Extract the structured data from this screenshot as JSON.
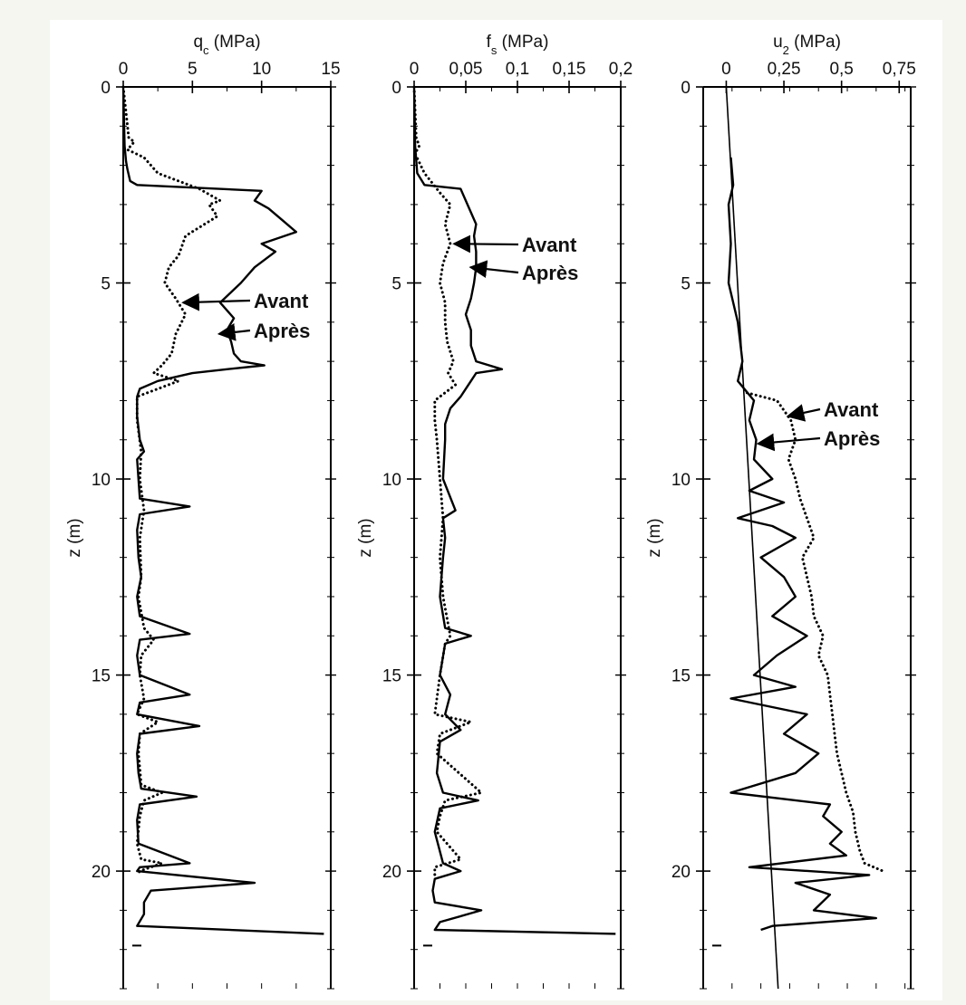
{
  "chart_data": [
    {
      "type": "line",
      "panel": "qc",
      "xlabel_main": "q",
      "xlabel_sub": "c",
      "xlabel_unit": " (MPa)",
      "ylabel": "z (m)",
      "xlim": [
        0,
        15
      ],
      "ylim": [
        0,
        23
      ],
      "x_ticks": [
        "0",
        "5",
        "10",
        "15"
      ],
      "x_tick_values": [
        0,
        5,
        10,
        15
      ],
      "y_ticks": [
        "0",
        "5",
        "10",
        "15",
        "20"
      ],
      "y_tick_values": [
        0,
        5,
        10,
        15,
        20
      ],
      "annotations": [
        {
          "text": "Avant",
          "target_x": 4.2,
          "target_z": 5.5
        },
        {
          "text": "Après",
          "target_x": 6.8,
          "target_z": 6.3
        }
      ],
      "series": [
        {
          "name": "Avant",
          "style": "dotted",
          "z": [
            0,
            1.3,
            1.4,
            1.6,
            1.8,
            2.2,
            2.6,
            2.9,
            3.0,
            3.3,
            3.8,
            4.3,
            4.6,
            5.0,
            5.4,
            5.8,
            6.3,
            6.8,
            7.1,
            7.3,
            7.5,
            7.9,
            8.5,
            9.3,
            10.0,
            10.8,
            11.5,
            12.5,
            13.0,
            13.8,
            14.1,
            14.5,
            15.0,
            15.6,
            16.0,
            16.2,
            16.5,
            17.0,
            17.8,
            18.0,
            18.2,
            18.6,
            19.3,
            19.7,
            19.8,
            20.0,
            20.1
          ],
          "x": [
            0,
            0.4,
            0.8,
            0.3,
            1.5,
            2.5,
            5.5,
            7.0,
            6.2,
            6.8,
            4.5,
            4.0,
            3.3,
            3.0,
            3.8,
            4.5,
            3.8,
            3.5,
            2.8,
            2.2,
            4.0,
            1.0,
            1.0,
            1.3,
            1.2,
            1.5,
            1.2,
            1.3,
            1.1,
            1.5,
            2.2,
            1.3,
            1.2,
            1.5,
            1.0,
            2.5,
            1.2,
            1.1,
            1.3,
            2.8,
            1.5,
            1.2,
            1.0,
            1.3,
            2.8,
            1.2,
            1.0
          ]
        },
        {
          "name": "Après",
          "style": "solid",
          "z": [
            0,
            1.5,
            1.9,
            2.1,
            2.4,
            2.5,
            2.65,
            2.9,
            3.1,
            3.4,
            3.7,
            4.0,
            4.2,
            4.6,
            5.0,
            5.5,
            5.9,
            6.2,
            6.5,
            6.8,
            7.0,
            7.1,
            7.2,
            7.3,
            7.5,
            7.7,
            7.9,
            8.4,
            9.0,
            9.3,
            9.5,
            10.0,
            10.5,
            10.7,
            10.9,
            11.3,
            12.0,
            12.5,
            13.0,
            13.5,
            13.95,
            14.1,
            14.5,
            15.0,
            15.5,
            15.7,
            16.0,
            16.3,
            16.5,
            17.0,
            17.5,
            17.9,
            18.1,
            18.3,
            18.7,
            19.3,
            19.8,
            19.9,
            20.0,
            20.3,
            20.5,
            20.8,
            21.1,
            21.4,
            21.6
          ],
          "x": [
            0,
            0.1,
            0.2,
            0.3,
            0.5,
            1.0,
            10.0,
            9.5,
            10.5,
            11.5,
            12.5,
            10.0,
            11.0,
            9.5,
            8.5,
            7.0,
            8.0,
            7.5,
            7.8,
            8.0,
            8.5,
            10.2,
            7.5,
            5.0,
            2.5,
            1.2,
            1.0,
            1.0,
            1.2,
            1.5,
            1.0,
            1.1,
            1.2,
            4.8,
            1.2,
            1.0,
            1.1,
            1.3,
            1.0,
            1.2,
            4.8,
            1.2,
            1.0,
            1.2,
            4.8,
            1.2,
            1.0,
            5.5,
            1.2,
            1.0,
            1.1,
            1.3,
            5.3,
            1.2,
            1.0,
            1.1,
            4.8,
            1.2,
            1.0,
            9.5,
            2.0,
            1.5,
            1.5,
            1.0,
            14.5
          ]
        }
      ]
    },
    {
      "type": "line",
      "panel": "fs",
      "xlabel_main": "f",
      "xlabel_sub": "s",
      "xlabel_unit": " (MPa)",
      "ylabel": "z (m)",
      "xlim": [
        0,
        0.2
      ],
      "ylim": [
        0,
        23
      ],
      "x_ticks": [
        "0",
        "0,05",
        "0,1",
        "0,15",
        "0,2"
      ],
      "x_tick_values": [
        0,
        0.05,
        0.1,
        0.15,
        0.2
      ],
      "y_ticks": [
        "0",
        "5",
        "10",
        "15",
        "20"
      ],
      "y_tick_values": [
        0,
        5,
        10,
        15,
        20
      ],
      "annotations": [
        {
          "text": "Avant",
          "target_x": 0.037,
          "target_z": 4.0
        },
        {
          "text": "Après",
          "target_x": 0.053,
          "target_z": 4.6
        }
      ],
      "series": [
        {
          "name": "Avant",
          "style": "dotted",
          "z": [
            0,
            1.3,
            1.5,
            1.7,
            2.2,
            2.7,
            3.0,
            3.5,
            4.0,
            4.5,
            5.0,
            5.5,
            6.0,
            6.5,
            7.0,
            7.3,
            7.6,
            8.0,
            8.5,
            9.0,
            10.0,
            11.0,
            12.0,
            13.0,
            14.0,
            14.2,
            15.0,
            16.0,
            16.2,
            16.5,
            17.0,
            18.0,
            18.2,
            18.6,
            19.0,
            19.7,
            19.9,
            20.1
          ],
          "x": [
            0,
            0.002,
            0.005,
            0.001,
            0.01,
            0.025,
            0.035,
            0.03,
            0.035,
            0.028,
            0.025,
            0.03,
            0.03,
            0.032,
            0.038,
            0.033,
            0.04,
            0.02,
            0.02,
            0.022,
            0.025,
            0.028,
            0.025,
            0.028,
            0.035,
            0.03,
            0.025,
            0.02,
            0.055,
            0.025,
            0.022,
            0.065,
            0.03,
            0.025,
            0.022,
            0.045,
            0.02,
            0.02
          ]
        },
        {
          "name": "Après",
          "style": "solid",
          "z": [
            0,
            1.5,
            2.2,
            2.5,
            2.6,
            2.9,
            3.2,
            3.5,
            3.8,
            4.2,
            4.6,
            5.0,
            5.4,
            5.8,
            6.2,
            6.6,
            7.0,
            7.2,
            7.3,
            7.5,
            7.7,
            7.9,
            8.2,
            8.6,
            9.0,
            10.0,
            10.8,
            11.0,
            11.5,
            12.0,
            13.0,
            13.8,
            14.0,
            14.2,
            15.0,
            15.5,
            16.0,
            16.4,
            16.7,
            17.5,
            18.0,
            18.2,
            18.4,
            19.0,
            19.8,
            20.0,
            20.2,
            20.5,
            20.8,
            21.0,
            21.3,
            21.5,
            21.6
          ],
          "x": [
            0,
            0.001,
            0.003,
            0.01,
            0.045,
            0.05,
            0.055,
            0.06,
            0.058,
            0.06,
            0.06,
            0.058,
            0.055,
            0.05,
            0.055,
            0.055,
            0.06,
            0.085,
            0.06,
            0.055,
            0.05,
            0.045,
            0.035,
            0.03,
            0.03,
            0.028,
            0.04,
            0.028,
            0.03,
            0.028,
            0.025,
            0.03,
            0.055,
            0.03,
            0.025,
            0.035,
            0.03,
            0.045,
            0.025,
            0.022,
            0.028,
            0.062,
            0.025,
            0.02,
            0.028,
            0.045,
            0.02,
            0.018,
            0.02,
            0.065,
            0.025,
            0.02,
            0.195
          ]
        }
      ]
    },
    {
      "type": "line",
      "panel": "u2",
      "xlabel_main": "u",
      "xlabel_sub": "2",
      "xlabel_unit": " (MPa)",
      "ylabel": "z (m)",
      "xlim": [
        -0.1,
        0.8
      ],
      "ylim": [
        0,
        23
      ],
      "x_ticks": [
        "0",
        "0,25",
        "0,5",
        "0,75"
      ],
      "x_tick_values": [
        0,
        0.25,
        0.5,
        0.75
      ],
      "y_ticks": [
        "0",
        "5",
        "10",
        "15",
        "20"
      ],
      "y_tick_values": [
        0,
        5,
        10,
        15,
        20
      ],
      "annotations": [
        {
          "text": "Avant",
          "target_x": 0.26,
          "target_z": 8.4
        },
        {
          "text": "Après",
          "target_x": 0.13,
          "target_z": 9.1
        }
      ],
      "hydrostatic_line": {
        "x": [
          0,
          0.225
        ],
        "z": [
          0,
          23
        ]
      },
      "series": [
        {
          "name": "Avant",
          "style": "dotted",
          "z": [
            7.8,
            8.0,
            8.5,
            9.0,
            9.5,
            10.0,
            10.5,
            11.0,
            11.5,
            12.0,
            12.5,
            13.0,
            13.5,
            14.0,
            14.5,
            15.0,
            15.5,
            16.0,
            16.5,
            17.0,
            17.5,
            18.0,
            18.5,
            19.0,
            19.5,
            19.8,
            20.0
          ],
          "x": [
            0.09,
            0.22,
            0.28,
            0.3,
            0.27,
            0.3,
            0.32,
            0.35,
            0.38,
            0.33,
            0.35,
            0.37,
            0.38,
            0.42,
            0.4,
            0.44,
            0.45,
            0.46,
            0.47,
            0.48,
            0.5,
            0.52,
            0.55,
            0.56,
            0.58,
            0.6,
            0.68
          ]
        },
        {
          "name": "Après",
          "style": "solid",
          "z": [
            1.8,
            2.5,
            3.0,
            4.0,
            5.0,
            6.0,
            7.0,
            7.5,
            8.0,
            8.5,
            9.0,
            9.5,
            10.0,
            10.3,
            10.6,
            11.0,
            11.2,
            11.5,
            12.0,
            12.5,
            13.0,
            13.5,
            14.0,
            14.5,
            15.0,
            15.3,
            15.6,
            16.0,
            16.5,
            17.0,
            17.5,
            18.0,
            18.3,
            18.6,
            19.0,
            19.3,
            19.6,
            19.9,
            20.1,
            20.3,
            20.6,
            21.0,
            21.2,
            21.4,
            21.5
          ],
          "x": [
            0.02,
            0.03,
            0.01,
            0.02,
            0.01,
            0.05,
            0.07,
            0.05,
            0.12,
            0.1,
            0.13,
            0.12,
            0.2,
            0.1,
            0.25,
            0.05,
            0.2,
            0.3,
            0.15,
            0.25,
            0.3,
            0.2,
            0.35,
            0.22,
            0.12,
            0.3,
            0.02,
            0.35,
            0.25,
            0.4,
            0.3,
            0.02,
            0.45,
            0.42,
            0.5,
            0.45,
            0.52,
            0.1,
            0.62,
            0.3,
            0.45,
            0.38,
            0.65,
            0.2,
            0.15
          ]
        }
      ]
    }
  ]
}
